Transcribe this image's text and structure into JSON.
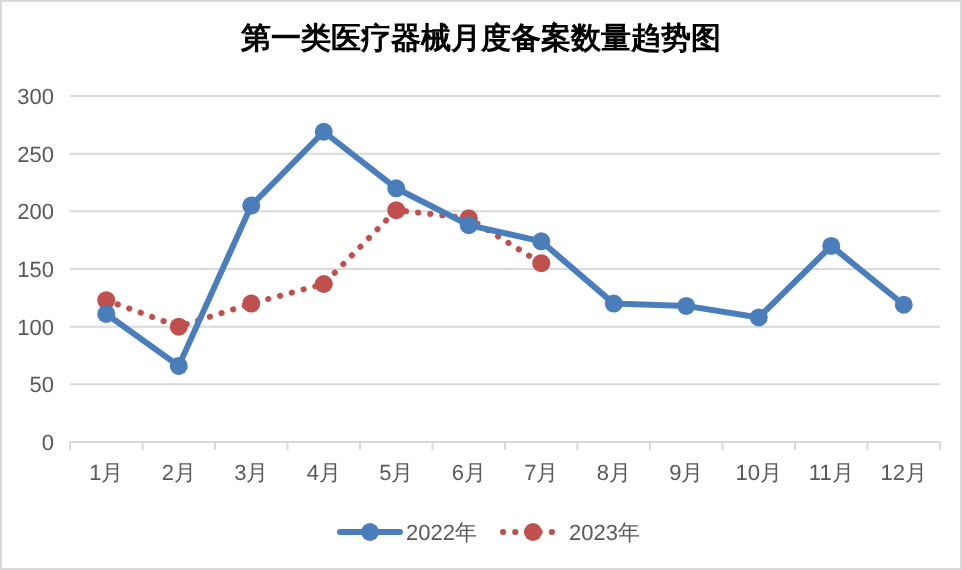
{
  "chart_data": {
    "type": "line",
    "title": "第一类医疗器械月度备案数量趋势图",
    "categories": [
      "1月",
      "2月",
      "3月",
      "4月",
      "5月",
      "6月",
      "7月",
      "8月",
      "9月",
      "10月",
      "11月",
      "12月"
    ],
    "series": [
      {
        "name": "2022年",
        "color": "#4a7ebb",
        "line_style": "solid",
        "values": [
          111,
          66,
          205,
          269,
          220,
          188,
          174,
          120,
          118,
          108,
          170,
          119
        ]
      },
      {
        "name": "2023年",
        "color": "#c0504d",
        "line_style": "dotted",
        "values": [
          123,
          100,
          120,
          137,
          201,
          194,
          155,
          null,
          null,
          null,
          null,
          null
        ]
      }
    ],
    "ylim": [
      0,
      300
    ],
    "yticks": [
      0,
      50,
      100,
      150,
      200,
      250,
      300
    ],
    "grid": "y",
    "legend": "bottom",
    "marker": "circle"
  }
}
